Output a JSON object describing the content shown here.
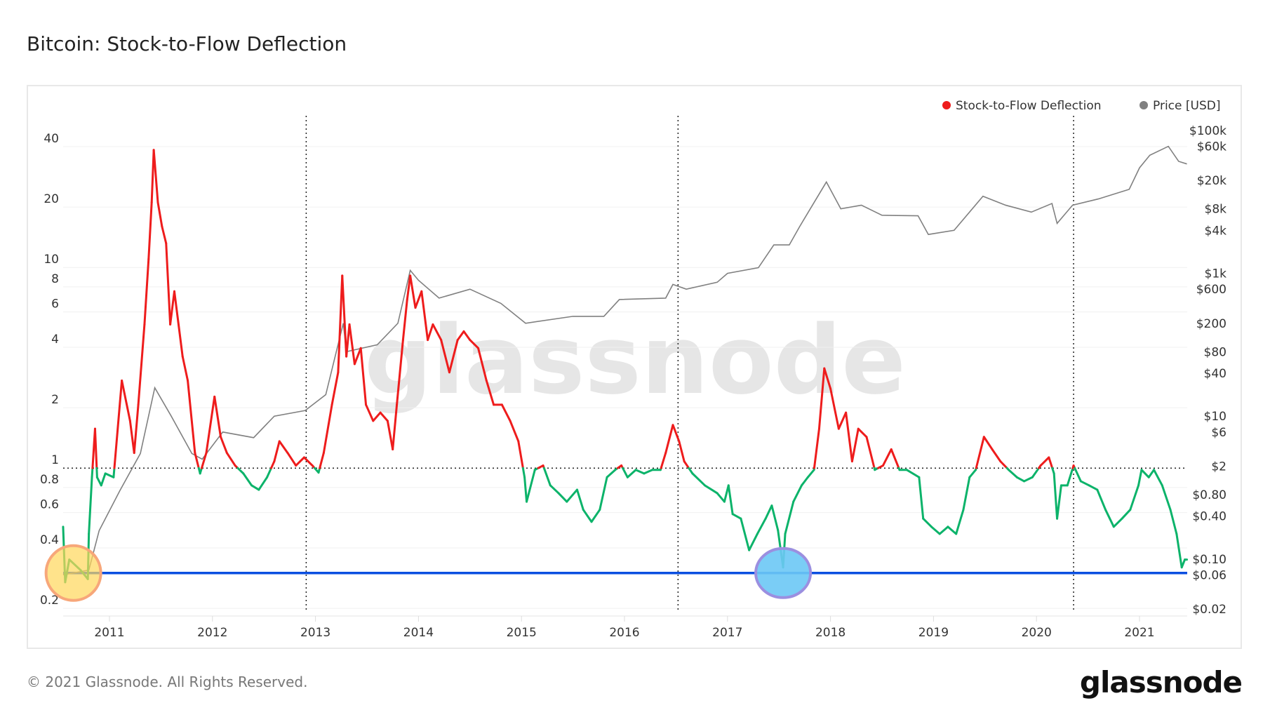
{
  "title": "Bitcoin: Stock-to-Flow Deflection",
  "footer": "© 2021 Glassnode. All Rights Reserved.",
  "logo": "glassnode",
  "watermark": "glassnode",
  "colors": {
    "above": "#ee1c1c",
    "below": "#0cb36a",
    "price": "#808080",
    "reference_line": "#0b4fe0",
    "highlight_start": "#ffd75a",
    "highlight_start_border": "#f7a77a",
    "highlight_now": "#6cc8f5",
    "highlight_now_border": "#9b8fe0"
  },
  "chart_data": {
    "type": "line",
    "title": "Bitcoin: Stock-to-Flow Deflection",
    "x_ticks": [
      "2011",
      "2012",
      "2013",
      "2014",
      "2015",
      "2016",
      "2017",
      "2018",
      "2019",
      "2020",
      "2021"
    ],
    "xlim": [
      2010.55,
      2021.47
    ],
    "y_left": {
      "scale": "log",
      "range": [
        0.2,
        60
      ],
      "ticks": [
        "40",
        "20",
        "10",
        "8",
        "6",
        "4",
        "2",
        "1",
        "0.8",
        "0.6",
        "0.4",
        "0.2"
      ]
    },
    "y_right": {
      "scale": "log",
      "range": [
        0.02,
        100000
      ],
      "ticks": [
        "$100k",
        "$60k",
        "$20k",
        "$8k",
        "$4k",
        "$1k",
        "$600",
        "$200",
        "$80",
        "$40",
        "$10",
        "$6",
        "$2",
        "$0.80",
        "$0.40",
        "$0.10",
        "$0.06",
        "$0.02"
      ]
    },
    "legend": {
      "placement": "top-right",
      "entries": [
        {
          "label": "Stock-to-Flow Deflection",
          "color": "#ee1c1c"
        },
        {
          "label": "Price [USD]",
          "color": "#808080"
        }
      ]
    },
    "reference_lines": {
      "horizontal_dotted_at": 1,
      "horizontal_solid_at": 0.3,
      "vertical_dotted_halvings": [
        2012.91,
        2016.52,
        2020.36
      ]
    },
    "highlights": [
      {
        "year": 2010.65,
        "value": 0.3
      },
      {
        "year": 2017.54,
        "value": 0.3
      }
    ],
    "series": [
      {
        "name": "Stock-to-Flow Deflection",
        "axis": "left",
        "color_rule": "red above 1, green below 1",
        "points": [
          [
            2010.55,
            0.51
          ],
          [
            2010.57,
            0.27
          ],
          [
            2010.61,
            0.35
          ],
          [
            2010.72,
            0.31
          ],
          [
            2010.79,
            0.28
          ],
          [
            2010.8,
            0.47
          ],
          [
            2010.83,
            0.9
          ],
          [
            2010.86,
            1.57
          ],
          [
            2010.88,
            0.9
          ],
          [
            2010.92,
            0.82
          ],
          [
            2010.96,
            0.94
          ],
          [
            2011.04,
            0.9
          ],
          [
            2011.12,
            2.73
          ],
          [
            2011.2,
            1.72
          ],
          [
            2011.24,
            1.19
          ],
          [
            2011.28,
            2.07
          ],
          [
            2011.34,
            5.2
          ],
          [
            2011.38,
            11
          ],
          [
            2011.41,
            21.1
          ],
          [
            2011.43,
            38.5
          ],
          [
            2011.47,
            21.1
          ],
          [
            2011.51,
            16
          ],
          [
            2011.55,
            13.2
          ],
          [
            2011.59,
            5.2
          ],
          [
            2011.63,
            7.6
          ],
          [
            2011.71,
            3.6
          ],
          [
            2011.76,
            2.73
          ],
          [
            2011.83,
            1.19
          ],
          [
            2011.88,
            0.94
          ],
          [
            2011.94,
            1.19
          ],
          [
            2012.02,
            2.27
          ],
          [
            2012.08,
            1.43
          ],
          [
            2012.14,
            1.19
          ],
          [
            2012.22,
            1.03
          ],
          [
            2012.3,
            0.94
          ],
          [
            2012.38,
            0.82
          ],
          [
            2012.45,
            0.78
          ],
          [
            2012.53,
            0.9
          ],
          [
            2012.6,
            1.08
          ],
          [
            2012.65,
            1.36
          ],
          [
            2012.73,
            1.19
          ],
          [
            2012.81,
            1.03
          ],
          [
            2012.89,
            1.13
          ],
          [
            2012.97,
            1.03
          ],
          [
            2013.03,
            0.95
          ],
          [
            2013.08,
            1.19
          ],
          [
            2013.16,
            2.07
          ],
          [
            2013.22,
            3.0
          ],
          [
            2013.26,
            9.1
          ],
          [
            2013.3,
            3.6
          ],
          [
            2013.33,
            5.2
          ],
          [
            2013.38,
            3.3
          ],
          [
            2013.44,
            3.96
          ],
          [
            2013.49,
            2.07
          ],
          [
            2013.56,
            1.72
          ],
          [
            2013.63,
            1.89
          ],
          [
            2013.7,
            1.72
          ],
          [
            2013.75,
            1.24
          ],
          [
            2013.79,
            2.07
          ],
          [
            2013.85,
            4.35
          ],
          [
            2013.89,
            6.9
          ],
          [
            2013.92,
            9.1
          ],
          [
            2013.97,
            6.3
          ],
          [
            2014.03,
            7.6
          ],
          [
            2014.09,
            4.35
          ],
          [
            2014.14,
            5.2
          ],
          [
            2014.22,
            4.35
          ],
          [
            2014.3,
            3.0
          ],
          [
            2014.38,
            4.35
          ],
          [
            2014.44,
            4.8
          ],
          [
            2014.5,
            4.35
          ],
          [
            2014.58,
            3.96
          ],
          [
            2014.66,
            2.73
          ],
          [
            2014.73,
            2.07
          ],
          [
            2014.81,
            2.07
          ],
          [
            2014.89,
            1.72
          ],
          [
            2014.97,
            1.36
          ],
          [
            2015.03,
            0.9
          ],
          [
            2015.05,
            0.68
          ],
          [
            2015.13,
            0.98
          ],
          [
            2015.21,
            1.03
          ],
          [
            2015.28,
            0.82
          ],
          [
            2015.36,
            0.75
          ],
          [
            2015.44,
            0.68
          ],
          [
            2015.54,
            0.78
          ],
          [
            2015.6,
            0.62
          ],
          [
            2015.68,
            0.54
          ],
          [
            2015.76,
            0.62
          ],
          [
            2015.83,
            0.9
          ],
          [
            2015.91,
            0.98
          ],
          [
            2015.97,
            1.03
          ],
          [
            2016.03,
            0.9
          ],
          [
            2016.11,
            0.98
          ],
          [
            2016.19,
            0.94
          ],
          [
            2016.27,
            0.98
          ],
          [
            2016.35,
            0.98
          ],
          [
            2016.4,
            1.19
          ],
          [
            2016.47,
            1.64
          ],
          [
            2016.53,
            1.36
          ],
          [
            2016.58,
            1.08
          ],
          [
            2016.66,
            0.94
          ],
          [
            2016.78,
            0.82
          ],
          [
            2016.9,
            0.75
          ],
          [
            2016.97,
            0.68
          ],
          [
            2017.01,
            0.82
          ],
          [
            2017.05,
            0.59
          ],
          [
            2017.13,
            0.56
          ],
          [
            2017.21,
            0.39
          ],
          [
            2017.29,
            0.47
          ],
          [
            2017.37,
            0.56
          ],
          [
            2017.43,
            0.65
          ],
          [
            2017.49,
            0.49
          ],
          [
            2017.54,
            0.32
          ],
          [
            2017.56,
            0.47
          ],
          [
            2017.64,
            0.68
          ],
          [
            2017.72,
            0.82
          ],
          [
            2017.78,
            0.9
          ],
          [
            2017.84,
            0.98
          ],
          [
            2017.89,
            1.57
          ],
          [
            2017.94,
            3.14
          ],
          [
            2018.0,
            2.49
          ],
          [
            2018.08,
            1.57
          ],
          [
            2018.15,
            1.89
          ],
          [
            2018.21,
            1.08
          ],
          [
            2018.27,
            1.57
          ],
          [
            2018.35,
            1.43
          ],
          [
            2018.43,
            0.98
          ],
          [
            2018.51,
            1.03
          ],
          [
            2018.59,
            1.24
          ],
          [
            2018.67,
            0.98
          ],
          [
            2018.74,
            0.98
          ],
          [
            2018.86,
            0.9
          ],
          [
            2018.9,
            0.56
          ],
          [
            2018.98,
            0.51
          ],
          [
            2019.06,
            0.47
          ],
          [
            2019.14,
            0.51
          ],
          [
            2019.22,
            0.47
          ],
          [
            2019.29,
            0.62
          ],
          [
            2019.35,
            0.9
          ],
          [
            2019.41,
            0.98
          ],
          [
            2019.49,
            1.43
          ],
          [
            2019.57,
            1.24
          ],
          [
            2019.65,
            1.08
          ],
          [
            2019.73,
            0.98
          ],
          [
            2019.81,
            0.9
          ],
          [
            2019.88,
            0.86
          ],
          [
            2019.96,
            0.9
          ],
          [
            2020.04,
            1.03
          ],
          [
            2020.12,
            1.13
          ],
          [
            2020.17,
            0.94
          ],
          [
            2020.2,
            0.56
          ],
          [
            2020.24,
            0.82
          ],
          [
            2020.3,
            0.82
          ],
          [
            2020.36,
            1.03
          ],
          [
            2020.43,
            0.86
          ],
          [
            2020.51,
            0.82
          ],
          [
            2020.59,
            0.78
          ],
          [
            2020.67,
            0.62
          ],
          [
            2020.75,
            0.51
          ],
          [
            2020.83,
            0.56
          ],
          [
            2020.91,
            0.62
          ],
          [
            2020.99,
            0.82
          ],
          [
            2021.02,
            0.98
          ],
          [
            2021.09,
            0.9
          ],
          [
            2021.14,
            0.98
          ],
          [
            2021.22,
            0.82
          ],
          [
            2021.3,
            0.62
          ],
          [
            2021.36,
            0.47
          ],
          [
            2021.41,
            0.32
          ],
          [
            2021.44,
            0.35
          ],
          [
            2021.46,
            0.35
          ]
        ]
      },
      {
        "name": "Price [USD]",
        "axis": "right",
        "points": [
          [
            2010.55,
            0.06
          ],
          [
            2010.8,
            0.07
          ],
          [
            2010.9,
            0.25
          ],
          [
            2011.1,
            0.9
          ],
          [
            2011.3,
            3
          ],
          [
            2011.44,
            25
          ],
          [
            2011.6,
            10
          ],
          [
            2011.8,
            3
          ],
          [
            2011.9,
            2.5
          ],
          [
            2012.1,
            6
          ],
          [
            2012.4,
            5
          ],
          [
            2012.6,
            10
          ],
          [
            2012.9,
            12
          ],
          [
            2013.1,
            20
          ],
          [
            2013.27,
            200
          ],
          [
            2013.3,
            80
          ],
          [
            2013.6,
            100
          ],
          [
            2013.8,
            200
          ],
          [
            2013.92,
            1100
          ],
          [
            2014.0,
            800
          ],
          [
            2014.2,
            450
          ],
          [
            2014.5,
            600
          ],
          [
            2014.8,
            380
          ],
          [
            2015.04,
            200
          ],
          [
            2015.5,
            250
          ],
          [
            2015.8,
            250
          ],
          [
            2015.95,
            430
          ],
          [
            2016.4,
            450
          ],
          [
            2016.47,
            700
          ],
          [
            2016.6,
            600
          ],
          [
            2016.9,
            750
          ],
          [
            2017.0,
            1000
          ],
          [
            2017.3,
            1200
          ],
          [
            2017.45,
            2500
          ],
          [
            2017.6,
            2500
          ],
          [
            2017.7,
            4500
          ],
          [
            2017.96,
            19000
          ],
          [
            2018.1,
            8000
          ],
          [
            2018.3,
            9000
          ],
          [
            2018.5,
            6500
          ],
          [
            2018.85,
            6400
          ],
          [
            2018.95,
            3500
          ],
          [
            2019.2,
            4000
          ],
          [
            2019.48,
            12000
          ],
          [
            2019.7,
            9000
          ],
          [
            2019.95,
            7200
          ],
          [
            2020.15,
            9500
          ],
          [
            2020.2,
            5000
          ],
          [
            2020.35,
            9000
          ],
          [
            2020.6,
            11000
          ],
          [
            2020.9,
            15000
          ],
          [
            2021.0,
            30000
          ],
          [
            2021.1,
            45000
          ],
          [
            2021.28,
            60000
          ],
          [
            2021.38,
            37000
          ],
          [
            2021.46,
            34000
          ]
        ]
      }
    ]
  }
}
